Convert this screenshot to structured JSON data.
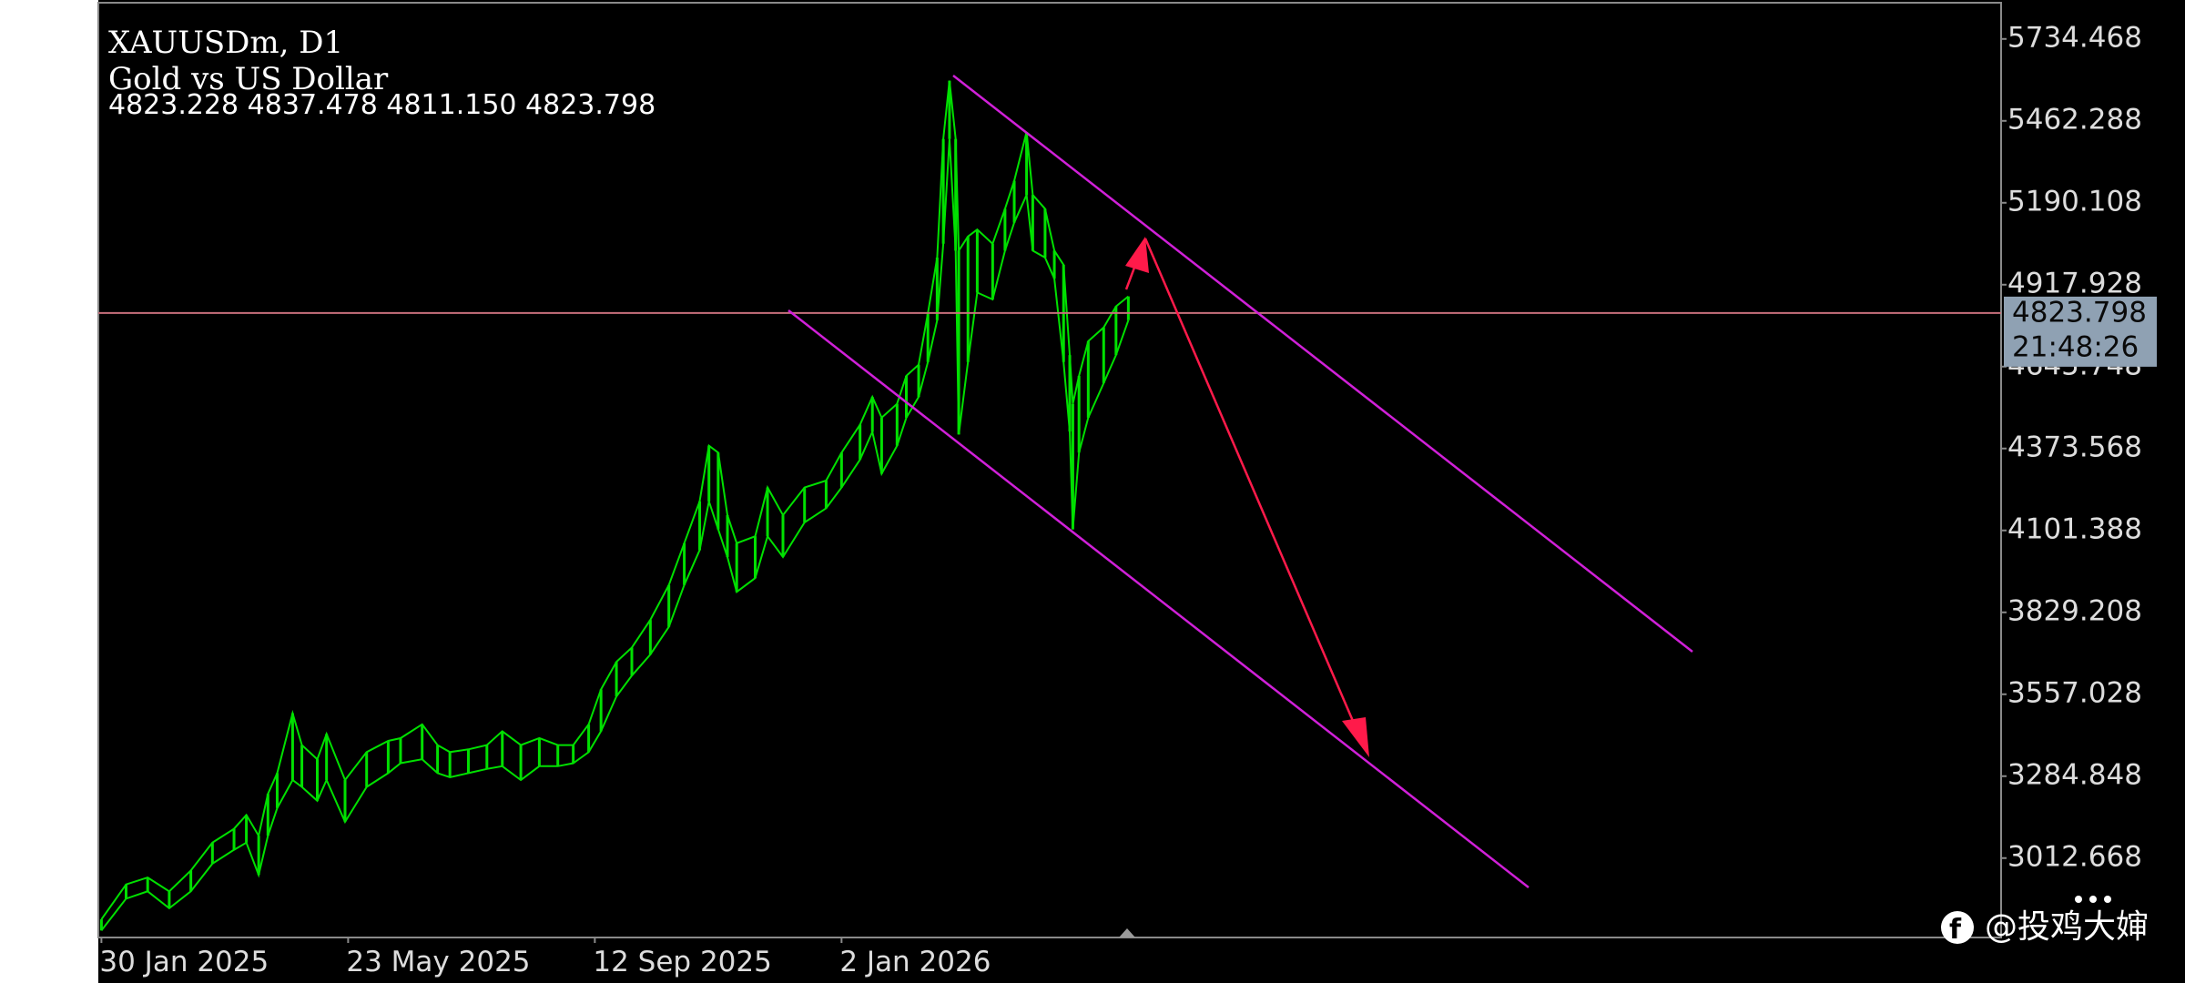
{
  "chart_data": {
    "type": "range",
    "title": "XAUUSDm, D1",
    "subtitle": "Gold vs US Dollar",
    "ohlc_text": "4823.228 4837.478 4811.150 4823.798",
    "color": "#00e000",
    "x": [
      0,
      8,
      15,
      22,
      29,
      36,
      43,
      47,
      51,
      54,
      57,
      62,
      65,
      70,
      73,
      79,
      86,
      93,
      97,
      104,
      109,
      113,
      119,
      125,
      130,
      136,
      142,
      148,
      153,
      158,
      162,
      167,
      172,
      178,
      184,
      189,
      194,
      197,
      200,
      203,
      206,
      212,
      216,
      221,
      228,
      235,
      240,
      246,
      250,
      253,
      258,
      261,
      265,
      268,
      271,
      273,
      275,
      277,
      278,
      281,
      284,
      289,
      293,
      296,
      300,
      302,
      306,
      309,
      312,
      314,
      315,
      317,
      320,
      325,
      329,
      333
    ],
    "high": [
      2809,
      2925,
      2948,
      2902,
      2971,
      3064,
      3110,
      3156,
      3087,
      3226,
      3295,
      3494,
      3388,
      3341,
      3425,
      3272,
      3365,
      3402,
      3411,
      3457,
      3388,
      3365,
      3374,
      3388,
      3434,
      3388,
      3411,
      3388,
      3388,
      3457,
      3573,
      3665,
      3712,
      3804,
      3920,
      4059,
      4198,
      4383,
      4360,
      4152,
      4059,
      4082,
      4244,
      4152,
      4244,
      4267,
      4360,
      4453,
      4545,
      4476,
      4522,
      4615,
      4652,
      4823,
      5008,
      5402,
      5596,
      5402,
      5031,
      5078,
      5101,
      5054,
      5170,
      5263,
      5425,
      5216,
      5170,
      5031,
      4984,
      4684,
      4522,
      4615,
      4730,
      4776,
      4846,
      4879
    ],
    "low": [
      2772,
      2878,
      2902,
      2846,
      2902,
      2994,
      3040,
      3064,
      2957,
      3087,
      3179,
      3272,
      3249,
      3203,
      3272,
      3133,
      3249,
      3295,
      3328,
      3341,
      3295,
      3281,
      3295,
      3309,
      3318,
      3272,
      3318,
      3318,
      3328,
      3365,
      3434,
      3550,
      3619,
      3689,
      3781,
      3920,
      4036,
      4198,
      4105,
      4013,
      3897,
      3943,
      4082,
      4013,
      4128,
      4175,
      4244,
      4337,
      4429,
      4290,
      4383,
      4476,
      4545,
      4661,
      4800,
      5054,
      5402,
      5031,
      4420,
      4661,
      4892,
      4869,
      5031,
      5124,
      5216,
      5031,
      5008,
      4938,
      4661,
      4430,
      4105,
      4360,
      4476,
      4591,
      4684,
      4800
    ],
    "xlim": [
      -1,
      616
    ],
    "xticks": [
      {
        "value": 0,
        "label": "30 Jan 2025"
      },
      {
        "value": 80,
        "label": "23 May 2025"
      },
      {
        "value": 160,
        "label": "12 Sep 2025"
      },
      {
        "value": 240,
        "label": "2 Jan 2026"
      }
    ],
    "ylim": [
      2748.8,
      5854.8
    ],
    "yticks": [
      5734.468,
      5462.288,
      5190.108,
      4917.928,
      4645.748,
      4373.568,
      4101.388,
      3829.208,
      3557.028,
      3284.848,
      3012.668
    ],
    "grid": false,
    "last_price": 4823.798,
    "last_price_color": "#c8707c",
    "countdown": "21:48:26",
    "watermark": "@投鸡大婶"
  }
}
